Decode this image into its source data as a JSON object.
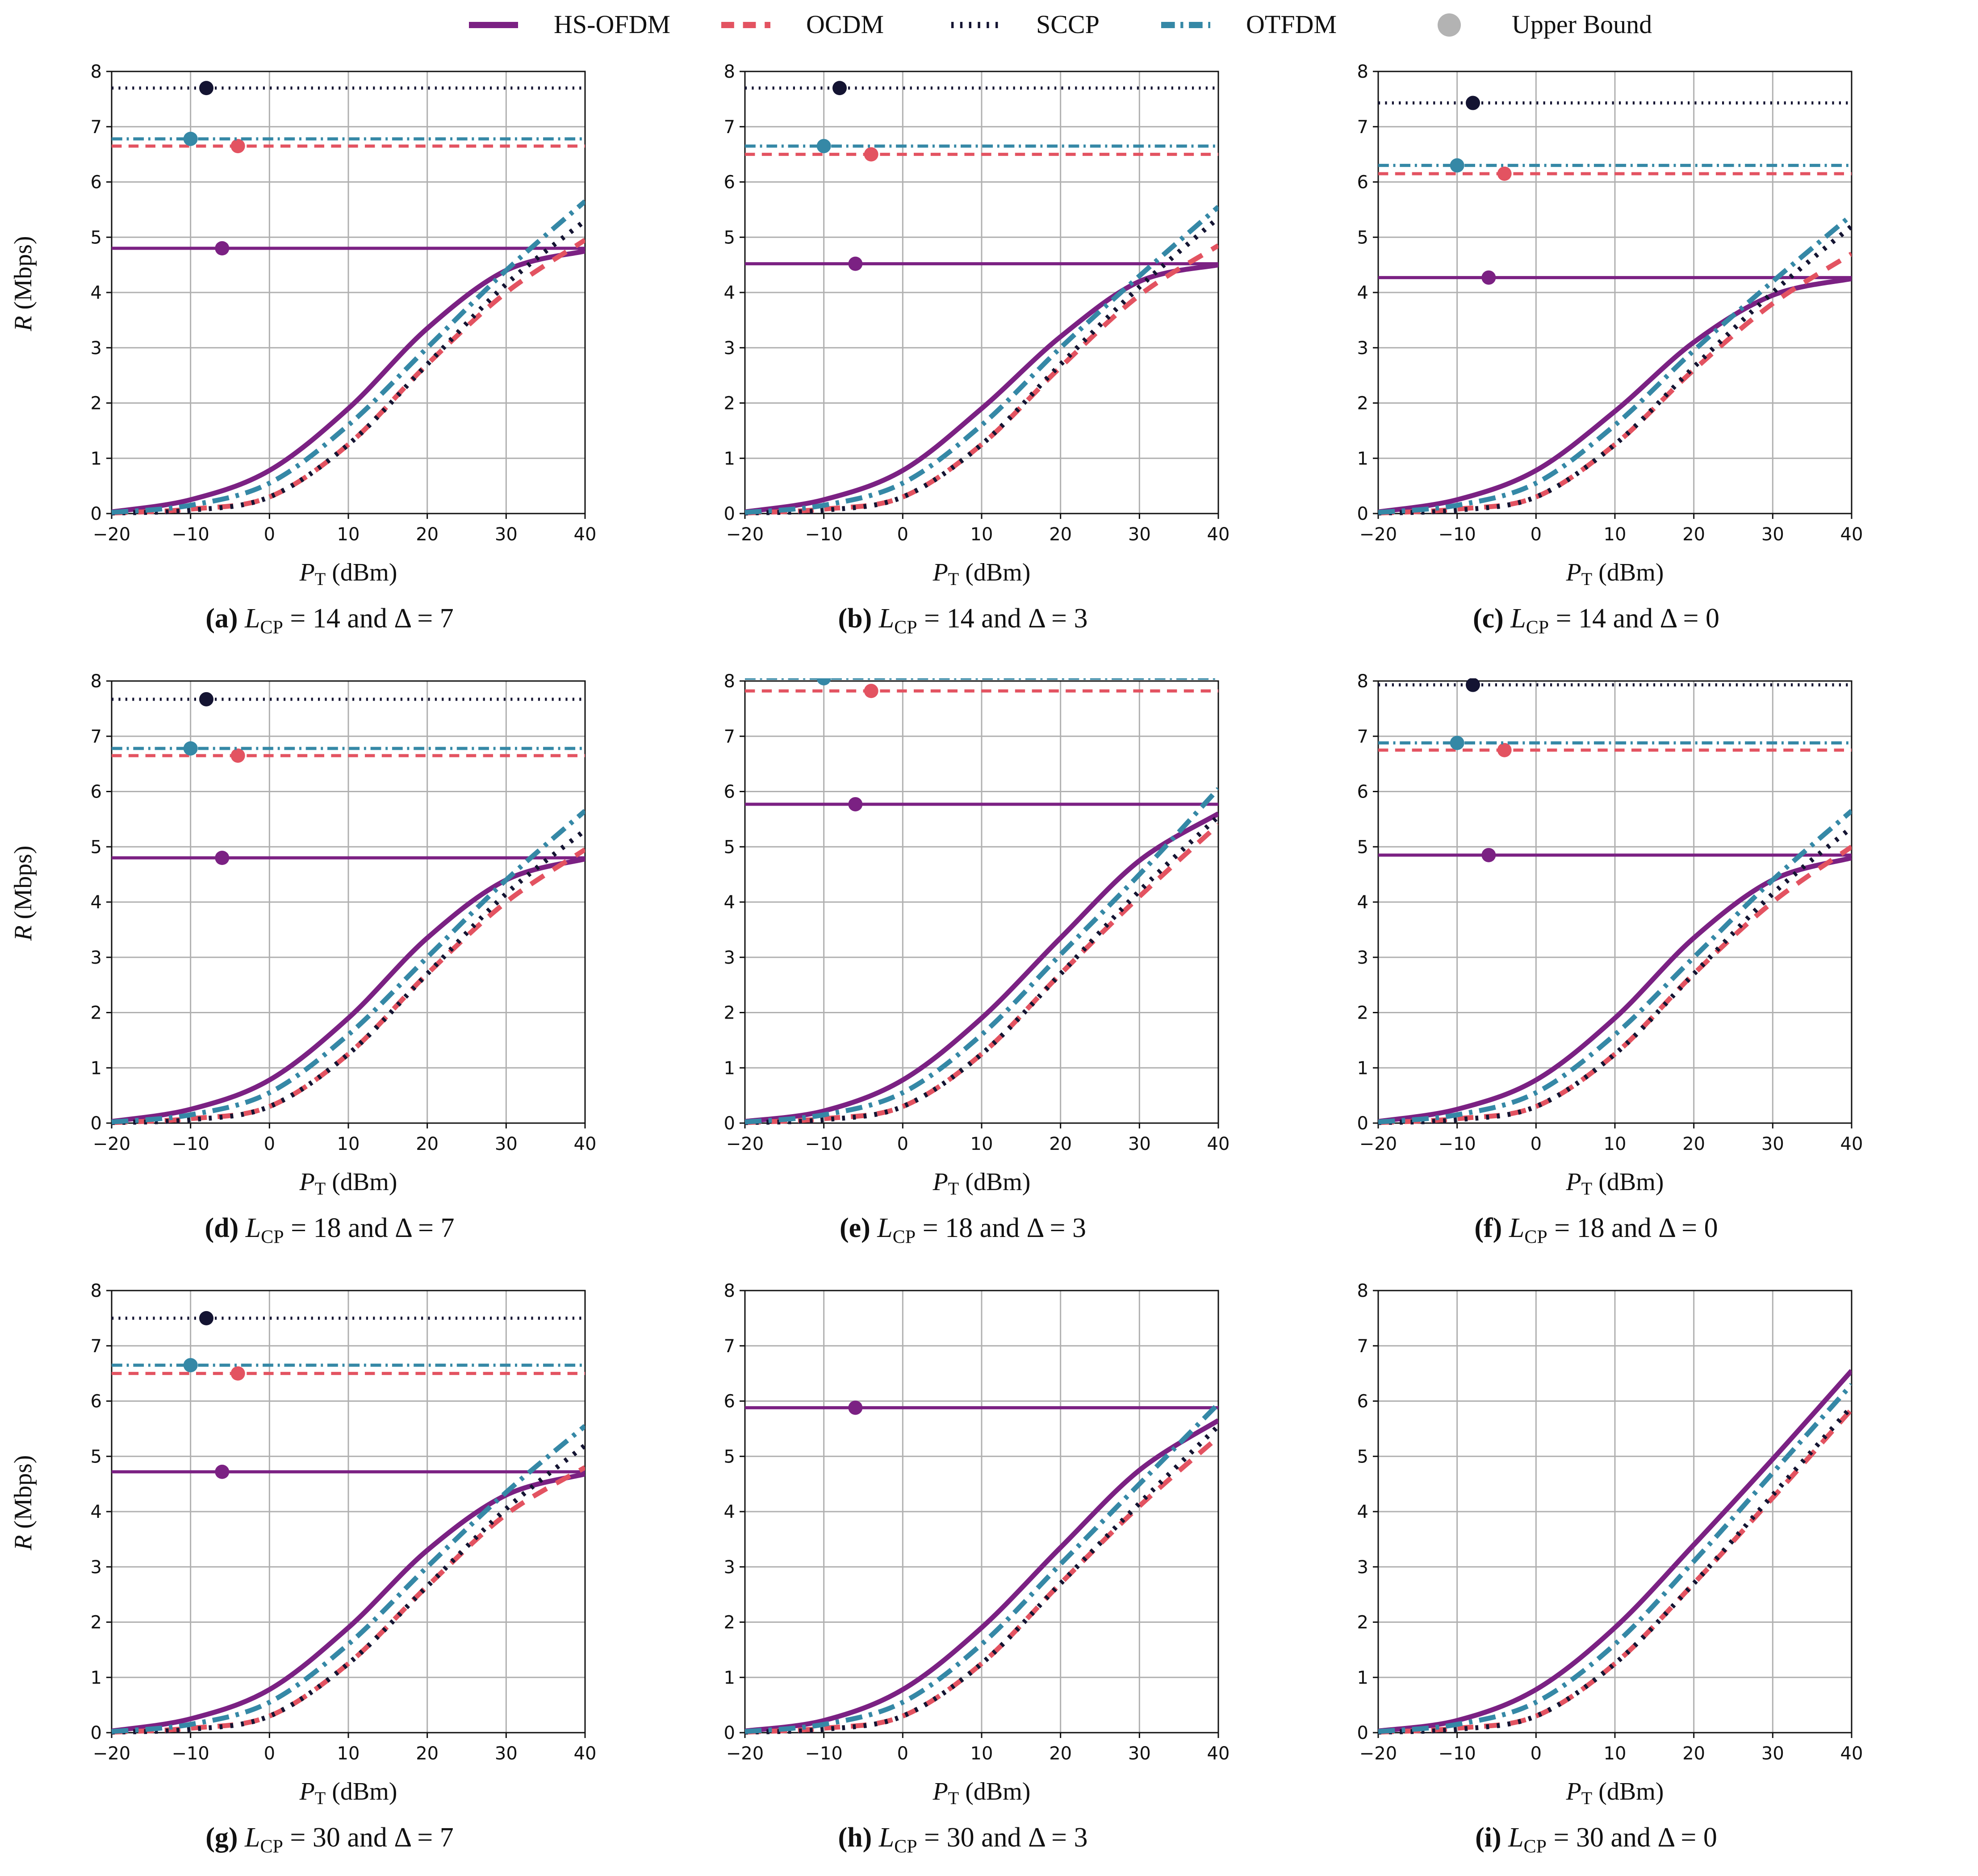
{
  "legend": {
    "items": [
      {
        "name": "HS-OFDM",
        "color": "#7b2183",
        "dash": "solid"
      },
      {
        "name": "OCDM",
        "color": "#e35361",
        "dash": "dashed"
      },
      {
        "name": "SCCP",
        "color": "#141432",
        "dash": "dotted"
      },
      {
        "name": "OTFDM",
        "color": "#3588a6",
        "dash": "dashdot"
      },
      {
        "name": "Upper Bound",
        "color": "#b3b3b3",
        "dash": "marker"
      }
    ]
  },
  "axes": {
    "xlabel_symbol": "P",
    "xlabel_sub": "T",
    "xlabel_unit": "(dBm)",
    "ylabel_symbol": "R",
    "ylabel_unit": "(Mbps)",
    "xticks": [
      "−20",
      "−10",
      "0",
      "10",
      "20",
      "30",
      "40"
    ],
    "yticks": [
      "0",
      "1",
      "2",
      "3",
      "4",
      "5",
      "6",
      "7",
      "8"
    ]
  },
  "chart_data": [
    {
      "type": "line",
      "panel": "a",
      "caption": {
        "letter": "(a)",
        "lcp": "14",
        "delta": "7"
      },
      "xlim": [
        -20,
        40
      ],
      "ylim": [
        0,
        8
      ],
      "grid": true,
      "series": [
        {
          "name": "HS-OFDM",
          "upper_bound": 4.8,
          "bound_marker_x": -6,
          "x": [
            -20,
            -10,
            0,
            10,
            20,
            30,
            40
          ],
          "y": [
            0.03,
            0.25,
            0.78,
            1.9,
            3.35,
            4.4,
            4.75
          ]
        },
        {
          "name": "OCDM",
          "upper_bound": 6.65,
          "bound_marker_x": -4,
          "x": [
            -20,
            -10,
            0,
            10,
            20,
            30,
            40
          ],
          "y": [
            0.01,
            0.08,
            0.3,
            1.25,
            2.7,
            4.0,
            4.95
          ]
        },
        {
          "name": "SCCP",
          "upper_bound": 7.7,
          "bound_marker_x": -8,
          "x": [
            -20,
            -10,
            0,
            10,
            20,
            30,
            40
          ],
          "y": [
            0.01,
            0.06,
            0.3,
            1.25,
            2.7,
            4.15,
            5.3
          ]
        },
        {
          "name": "OTFDM",
          "upper_bound": 6.78,
          "bound_marker_x": -10,
          "x": [
            -20,
            -10,
            0,
            10,
            20,
            30,
            40
          ],
          "y": [
            0.02,
            0.15,
            0.55,
            1.6,
            3.0,
            4.4,
            5.65
          ]
        }
      ]
    },
    {
      "type": "line",
      "panel": "b",
      "caption": {
        "letter": "(b)",
        "lcp": "14",
        "delta": "3"
      },
      "xlim": [
        -20,
        40
      ],
      "ylim": [
        0,
        8
      ],
      "grid": true,
      "series": [
        {
          "name": "HS-OFDM",
          "upper_bound": 4.52,
          "bound_marker_x": -6,
          "x": [
            -20,
            -10,
            0,
            10,
            20,
            30,
            40
          ],
          "y": [
            0.03,
            0.25,
            0.78,
            1.9,
            3.2,
            4.2,
            4.5
          ]
        },
        {
          "name": "OCDM",
          "upper_bound": 6.5,
          "bound_marker_x": -4,
          "x": [
            -20,
            -10,
            0,
            10,
            20,
            30,
            40
          ],
          "y": [
            0.01,
            0.08,
            0.3,
            1.25,
            2.65,
            3.95,
            4.85
          ]
        },
        {
          "name": "SCCP",
          "upper_bound": 7.7,
          "bound_marker_x": -8,
          "x": [
            -20,
            -10,
            0,
            10,
            20,
            30,
            40
          ],
          "y": [
            0.01,
            0.06,
            0.3,
            1.25,
            2.7,
            4.1,
            5.35
          ]
        },
        {
          "name": "OTFDM",
          "upper_bound": 6.65,
          "bound_marker_x": -10,
          "x": [
            -20,
            -10,
            0,
            10,
            20,
            30,
            40
          ],
          "y": [
            0.02,
            0.15,
            0.55,
            1.6,
            3.0,
            4.3,
            5.55
          ]
        }
      ]
    },
    {
      "type": "line",
      "panel": "c",
      "caption": {
        "letter": "(c)",
        "lcp": "14",
        "delta": "0"
      },
      "xlim": [
        -20,
        40
      ],
      "ylim": [
        0,
        8
      ],
      "grid": true,
      "series": [
        {
          "name": "HS-OFDM",
          "upper_bound": 4.27,
          "bound_marker_x": -6,
          "x": [
            -20,
            -10,
            0,
            10,
            20,
            30,
            40
          ],
          "y": [
            0.03,
            0.25,
            0.78,
            1.85,
            3.1,
            3.95,
            4.25
          ]
        },
        {
          "name": "OCDM",
          "upper_bound": 6.15,
          "bound_marker_x": -4,
          "x": [
            -20,
            -10,
            0,
            10,
            20,
            30,
            40
          ],
          "y": [
            0.01,
            0.08,
            0.3,
            1.25,
            2.6,
            3.8,
            4.7
          ]
        },
        {
          "name": "SCCP",
          "upper_bound": 7.43,
          "bound_marker_x": -8,
          "x": [
            -20,
            -10,
            0,
            10,
            20,
            30,
            40
          ],
          "y": [
            0.01,
            0.06,
            0.3,
            1.25,
            2.65,
            4.0,
            5.2
          ]
        },
        {
          "name": "OTFDM",
          "upper_bound": 6.3,
          "bound_marker_x": -10,
          "x": [
            -20,
            -10,
            0,
            10,
            20,
            30,
            40
          ],
          "y": [
            0.02,
            0.15,
            0.55,
            1.6,
            2.95,
            4.2,
            5.4
          ]
        }
      ]
    },
    {
      "type": "line",
      "panel": "d",
      "caption": {
        "letter": "(d)",
        "lcp": "18",
        "delta": "7"
      },
      "xlim": [
        -20,
        40
      ],
      "ylim": [
        0,
        8
      ],
      "grid": true,
      "series": [
        {
          "name": "HS-OFDM",
          "upper_bound": 4.8,
          "bound_marker_x": -6,
          "x": [
            -20,
            -10,
            0,
            10,
            20,
            30,
            40
          ],
          "y": [
            0.03,
            0.25,
            0.78,
            1.9,
            3.35,
            4.4,
            4.78
          ]
        },
        {
          "name": "OCDM",
          "upper_bound": 6.65,
          "bound_marker_x": -4,
          "x": [
            -20,
            -10,
            0,
            10,
            20,
            30,
            40
          ],
          "y": [
            0.01,
            0.08,
            0.3,
            1.25,
            2.7,
            4.0,
            4.95
          ]
        },
        {
          "name": "SCCP",
          "upper_bound": 7.67,
          "bound_marker_x": -8,
          "x": [
            -20,
            -10,
            0,
            10,
            20,
            30,
            40
          ],
          "y": [
            0.01,
            0.06,
            0.3,
            1.25,
            2.7,
            4.15,
            5.3
          ]
        },
        {
          "name": "OTFDM",
          "upper_bound": 6.78,
          "bound_marker_x": -10,
          "x": [
            -20,
            -10,
            0,
            10,
            20,
            30,
            40
          ],
          "y": [
            0.02,
            0.15,
            0.55,
            1.6,
            3.0,
            4.4,
            5.65
          ]
        }
      ]
    },
    {
      "type": "line",
      "panel": "e",
      "caption": {
        "letter": "(e)",
        "lcp": "18",
        "delta": "3"
      },
      "xlim": [
        -20,
        40
      ],
      "ylim": [
        0,
        8
      ],
      "grid": true,
      "series": [
        {
          "name": "HS-OFDM",
          "upper_bound": 5.77,
          "bound_marker_x": -6,
          "x": [
            -20,
            -10,
            0,
            10,
            20,
            30,
            40
          ],
          "y": [
            0.03,
            0.22,
            0.78,
            1.9,
            3.35,
            4.75,
            5.6
          ]
        },
        {
          "name": "OCDM",
          "upper_bound": 7.82,
          "bound_marker_x": -4,
          "x": [
            -20,
            -10,
            0,
            10,
            20,
            30,
            40
          ],
          "y": [
            0.01,
            0.08,
            0.3,
            1.25,
            2.7,
            4.1,
            5.4
          ]
        },
        {
          "name": "SCCP",
          "upper_bound": null,
          "bound_marker_x": null,
          "x": [
            -20,
            -10,
            0,
            10,
            20,
            30,
            40
          ],
          "y": [
            0.01,
            0.06,
            0.3,
            1.25,
            2.7,
            4.2,
            5.55
          ]
        },
        {
          "name": "OTFDM",
          "upper_bound": 8.05,
          "bound_marker_x": -10,
          "x": [
            -20,
            -10,
            0,
            10,
            20,
            30,
            40
          ],
          "y": [
            0.02,
            0.15,
            0.55,
            1.6,
            3.05,
            4.5,
            6.05
          ]
        }
      ]
    },
    {
      "type": "line",
      "panel": "f",
      "caption": {
        "letter": "(f)",
        "lcp": "18",
        "delta": "0"
      },
      "xlim": [
        -20,
        40
      ],
      "ylim": [
        0,
        8
      ],
      "grid": true,
      "series": [
        {
          "name": "HS-OFDM",
          "upper_bound": 4.85,
          "bound_marker_x": -6,
          "x": [
            -20,
            -10,
            0,
            10,
            20,
            30,
            40
          ],
          "y": [
            0.03,
            0.25,
            0.78,
            1.9,
            3.35,
            4.4,
            4.8
          ]
        },
        {
          "name": "OCDM",
          "upper_bound": 6.75,
          "bound_marker_x": -4,
          "x": [
            -20,
            -10,
            0,
            10,
            20,
            30,
            40
          ],
          "y": [
            0.01,
            0.08,
            0.3,
            1.25,
            2.7,
            4.0,
            5.0
          ]
        },
        {
          "name": "SCCP",
          "upper_bound": 7.93,
          "bound_marker_x": -8,
          "x": [
            -20,
            -10,
            0,
            10,
            20,
            30,
            40
          ],
          "y": [
            0.01,
            0.06,
            0.3,
            1.25,
            2.7,
            4.15,
            5.35
          ]
        },
        {
          "name": "OTFDM",
          "upper_bound": 6.88,
          "bound_marker_x": -10,
          "x": [
            -20,
            -10,
            0,
            10,
            20,
            30,
            40
          ],
          "y": [
            0.02,
            0.15,
            0.55,
            1.6,
            3.0,
            4.4,
            5.65
          ]
        }
      ]
    },
    {
      "type": "line",
      "panel": "g",
      "caption": {
        "letter": "(g)",
        "lcp": "30",
        "delta": "7"
      },
      "xlim": [
        -20,
        40
      ],
      "ylim": [
        0,
        8
      ],
      "grid": true,
      "series": [
        {
          "name": "HS-OFDM",
          "upper_bound": 4.72,
          "bound_marker_x": -6,
          "x": [
            -20,
            -10,
            0,
            10,
            20,
            30,
            40
          ],
          "y": [
            0.03,
            0.25,
            0.78,
            1.9,
            3.3,
            4.3,
            4.68
          ]
        },
        {
          "name": "OCDM",
          "upper_bound": 6.5,
          "bound_marker_x": -4,
          "x": [
            -20,
            -10,
            0,
            10,
            20,
            30,
            40
          ],
          "y": [
            0.01,
            0.08,
            0.3,
            1.25,
            2.65,
            3.95,
            4.8
          ]
        },
        {
          "name": "SCCP",
          "upper_bound": 7.5,
          "bound_marker_x": -8,
          "x": [
            -20,
            -10,
            0,
            10,
            20,
            30,
            40
          ],
          "y": [
            0.01,
            0.06,
            0.3,
            1.25,
            2.65,
            4.05,
            5.2
          ]
        },
        {
          "name": "OTFDM",
          "upper_bound": 6.65,
          "bound_marker_x": -10,
          "x": [
            -20,
            -10,
            0,
            10,
            20,
            30,
            40
          ],
          "y": [
            0.02,
            0.15,
            0.55,
            1.6,
            3.0,
            4.35,
            5.55
          ]
        }
      ]
    },
    {
      "type": "line",
      "panel": "h",
      "caption": {
        "letter": "(h)",
        "lcp": "30",
        "delta": "3"
      },
      "xlim": [
        -20,
        40
      ],
      "ylim": [
        0,
        8
      ],
      "grid": true,
      "series": [
        {
          "name": "HS-OFDM",
          "upper_bound": 5.88,
          "bound_marker_x": -6,
          "x": [
            -20,
            -10,
            0,
            10,
            20,
            30,
            40
          ],
          "y": [
            0.03,
            0.22,
            0.78,
            1.9,
            3.35,
            4.75,
            5.65
          ]
        },
        {
          "name": "OCDM",
          "upper_bound": null,
          "bound_marker_x": null,
          "x": [
            -20,
            -10,
            0,
            10,
            20,
            30,
            40
          ],
          "y": [
            0.01,
            0.08,
            0.3,
            1.25,
            2.7,
            4.1,
            5.35
          ]
        },
        {
          "name": "SCCP",
          "upper_bound": null,
          "bound_marker_x": null,
          "x": [
            -20,
            -10,
            0,
            10,
            20,
            30,
            40
          ],
          "y": [
            0.01,
            0.06,
            0.3,
            1.25,
            2.7,
            4.15,
            5.55
          ]
        },
        {
          "name": "OTFDM",
          "upper_bound": null,
          "bound_marker_x": null,
          "x": [
            -20,
            -10,
            0,
            10,
            20,
            30,
            40
          ],
          "y": [
            0.02,
            0.15,
            0.55,
            1.6,
            3.05,
            4.5,
            5.95
          ]
        }
      ]
    },
    {
      "type": "line",
      "panel": "i",
      "caption": {
        "letter": "(i)",
        "lcp": "30",
        "delta": "0"
      },
      "xlim": [
        -20,
        40
      ],
      "ylim": [
        0,
        8
      ],
      "grid": true,
      "series": [
        {
          "name": "HS-OFDM",
          "upper_bound": null,
          "bound_marker_x": null,
          "x": [
            -20,
            -10,
            0,
            10,
            20,
            30,
            40
          ],
          "y": [
            0.03,
            0.22,
            0.78,
            1.9,
            3.4,
            4.95,
            6.55
          ]
        },
        {
          "name": "OCDM",
          "upper_bound": null,
          "bound_marker_x": null,
          "x": [
            -20,
            -10,
            0,
            10,
            20,
            30,
            40
          ],
          "y": [
            0.01,
            0.08,
            0.3,
            1.25,
            2.7,
            4.25,
            5.85
          ]
        },
        {
          "name": "SCCP",
          "upper_bound": null,
          "bound_marker_x": null,
          "x": [
            -20,
            -10,
            0,
            10,
            20,
            30,
            40
          ],
          "y": [
            0.01,
            0.06,
            0.3,
            1.25,
            2.7,
            4.3,
            5.9
          ]
        },
        {
          "name": "OTFDM",
          "upper_bound": null,
          "bound_marker_x": null,
          "x": [
            -20,
            -10,
            0,
            10,
            20,
            30,
            40
          ],
          "y": [
            0.02,
            0.15,
            0.55,
            1.6,
            3.1,
            4.7,
            6.3
          ]
        }
      ]
    }
  ]
}
